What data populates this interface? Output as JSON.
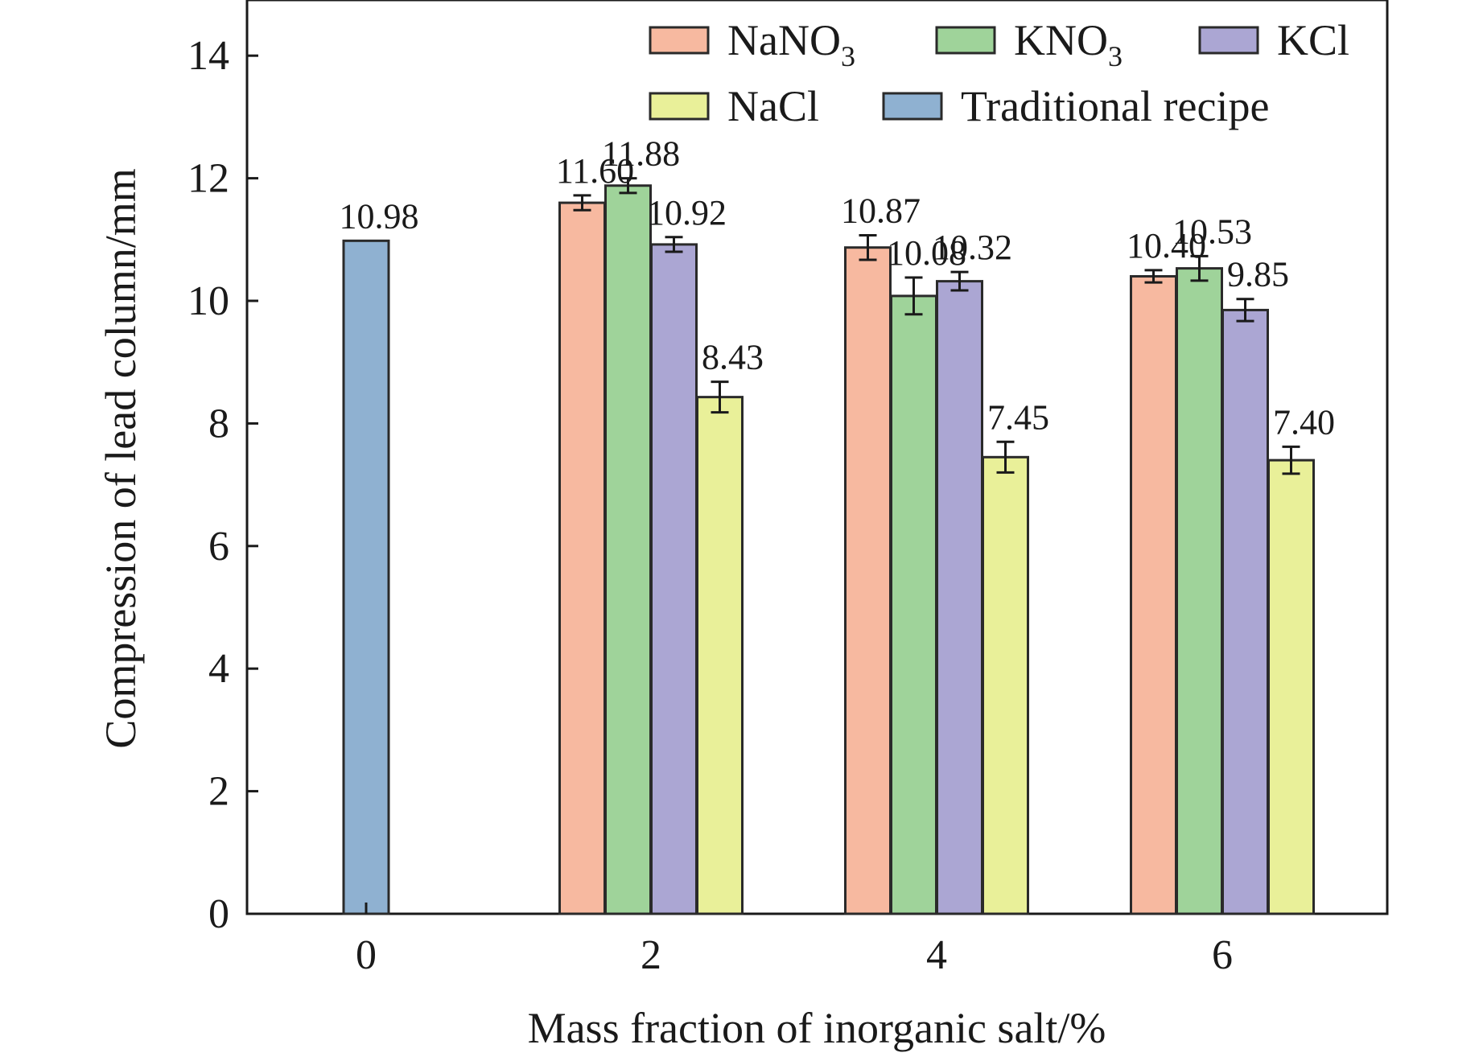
{
  "chart_data": {
    "type": "bar",
    "xlabel": "Mass fraction of inorganic salt/%",
    "ylabel": "Compression of lead column/mm",
    "ylim": [
      0,
      14
    ],
    "yticks": [
      "0",
      "2",
      "4",
      "6",
      "8",
      "10",
      "12",
      "14"
    ],
    "categories": [
      "0",
      "2",
      "4",
      "6"
    ],
    "legend_position": "top-right",
    "grid": false,
    "series": [
      {
        "key": "NaNO3",
        "name": "NaNO",
        "name_sub": "3",
        "color": "#f7b9a0",
        "values": [
          null,
          11.6,
          10.87,
          10.4
        ],
        "errors": [
          null,
          0.12,
          0.2,
          0.1
        ],
        "labels": [
          null,
          "11.60",
          "10.87",
          "10.40"
        ]
      },
      {
        "key": "KNO3",
        "name": "KNO",
        "name_sub": "3",
        "color": "#9fd39a",
        "values": [
          null,
          11.88,
          10.08,
          10.53
        ],
        "errors": [
          null,
          0.12,
          0.3,
          0.2
        ],
        "labels": [
          null,
          "11.88",
          "10.08",
          "10.53"
        ]
      },
      {
        "key": "KCl",
        "name": "KCl",
        "name_sub": "",
        "color": "#aba6d3",
        "values": [
          null,
          10.92,
          10.32,
          9.85
        ],
        "errors": [
          null,
          0.12,
          0.15,
          0.18
        ],
        "labels": [
          null,
          "10.92",
          "10.32",
          "9.85"
        ]
      },
      {
        "key": "NaCl",
        "name": "NaCl",
        "name_sub": "",
        "color": "#e9f099",
        "values": [
          null,
          8.43,
          7.45,
          7.4
        ],
        "errors": [
          null,
          0.25,
          0.25,
          0.22
        ],
        "labels": [
          null,
          "8.43",
          "7.45",
          "7.40"
        ]
      },
      {
        "key": "Traditional",
        "name": "Traditional recipe",
        "name_sub": "",
        "color": "#8fb1d1",
        "values": [
          10.98,
          null,
          null,
          null
        ],
        "errors": [
          0,
          null,
          null,
          null
        ],
        "labels": [
          "10.98",
          null,
          null,
          null
        ]
      }
    ]
  }
}
